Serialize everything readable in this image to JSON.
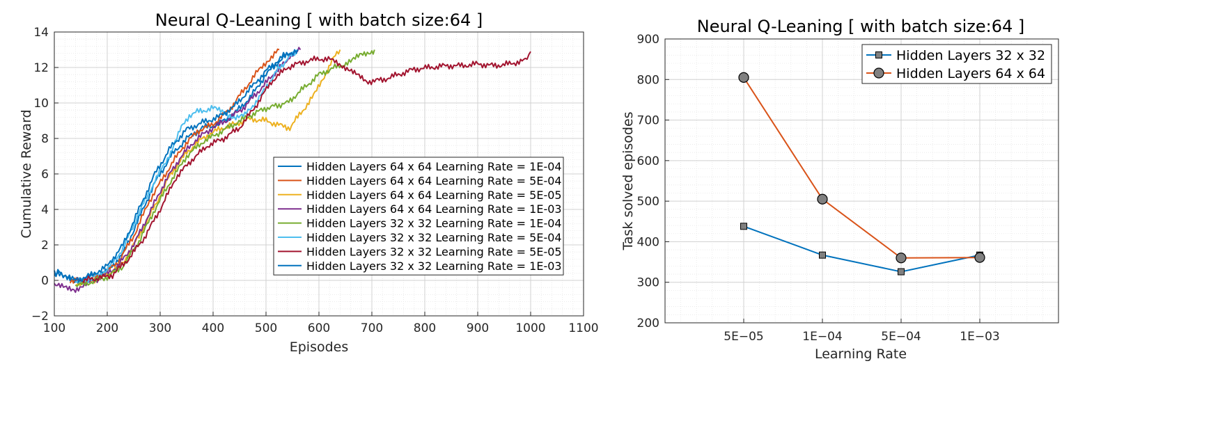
{
  "chart_data": [
    {
      "type": "line",
      "title": "Neural Q-Leaning [ with batch size:64 ]",
      "xlabel": "Episodes",
      "ylabel": "Cumulative Reward",
      "xlim": [
        100,
        1100
      ],
      "ylim": [
        -2,
        14
      ],
      "xticks": [
        100,
        200,
        300,
        400,
        500,
        600,
        700,
        800,
        900,
        1000,
        1100
      ],
      "yticks": [
        -2,
        0,
        2,
        4,
        6,
        8,
        10,
        12,
        14
      ],
      "grid": true,
      "legend_position": "right",
      "series": [
        {
          "name": "Hidden Layers 64 x 64 Learning Rate = 1E-04",
          "color": "#0072BD",
          "points": [
            [
              100,
              0.5
            ],
            [
              110,
              0.3
            ],
            [
              130,
              0.1
            ],
            [
              150,
              0.0
            ],
            [
              170,
              0.2
            ],
            [
              200,
              0.5
            ],
            [
              230,
              1.5
            ],
            [
              260,
              3.5
            ],
            [
              290,
              5.5
            ],
            [
              320,
              7.0
            ],
            [
              350,
              8.0
            ],
            [
              380,
              8.6
            ],
            [
              410,
              8.8
            ],
            [
              440,
              9.4
            ],
            [
              470,
              10.3
            ],
            [
              500,
              11.6
            ],
            [
              530,
              12.5
            ],
            [
              560,
              13.0
            ]
          ]
        },
        {
          "name": "Hidden Layers 64 x 64 Learning Rate = 5E-04",
          "color": "#D95319",
          "points": [
            [
              130,
              0.0
            ],
            [
              160,
              0.0
            ],
            [
              190,
              0.3
            ],
            [
              220,
              1.0
            ],
            [
              250,
              2.5
            ],
            [
              280,
              4.5
            ],
            [
              310,
              6.0
            ],
            [
              340,
              7.4
            ],
            [
              370,
              8.4
            ],
            [
              400,
              8.8
            ],
            [
              430,
              9.6
            ],
            [
              460,
              10.8
            ],
            [
              490,
              12.0
            ],
            [
              510,
              12.6
            ],
            [
              525,
              13.0
            ]
          ]
        },
        {
          "name": "Hidden Layers 64 x 64 Learning Rate = 5E-05",
          "color": "#EDB120",
          "points": [
            [
              140,
              -0.2
            ],
            [
              170,
              0.0
            ],
            [
              200,
              0.3
            ],
            [
              230,
              1.0
            ],
            [
              260,
              2.5
            ],
            [
              290,
              4.2
            ],
            [
              320,
              6.0
            ],
            [
              350,
              7.2
            ],
            [
              380,
              8.0
            ],
            [
              410,
              8.5
            ],
            [
              440,
              8.8
            ],
            [
              470,
              9.1
            ],
            [
              500,
              9.0
            ],
            [
              530,
              8.7
            ],
            [
              545,
              8.6
            ],
            [
              560,
              9.2
            ],
            [
              590,
              10.4
            ],
            [
              610,
              11.5
            ],
            [
              625,
              12.4
            ],
            [
              640,
              13.0
            ]
          ]
        },
        {
          "name": "Hidden Layers 64 x 64 Learning Rate = 1E-03",
          "color": "#7E2F8E",
          "points": [
            [
              100,
              -0.3
            ],
            [
              120,
              -0.4
            ],
            [
              140,
              -0.5
            ],
            [
              160,
              -0.2
            ],
            [
              190,
              0.2
            ],
            [
              220,
              0.8
            ],
            [
              250,
              2.0
            ],
            [
              280,
              3.8
            ],
            [
              310,
              5.6
            ],
            [
              340,
              7.0
            ],
            [
              370,
              8.0
            ],
            [
              400,
              8.6
            ],
            [
              430,
              9.1
            ],
            [
              460,
              9.8
            ],
            [
              490,
              10.8
            ],
            [
              520,
              11.8
            ],
            [
              545,
              12.6
            ],
            [
              565,
              13.0
            ]
          ]
        },
        {
          "name": "Hidden Layers 32 x 32 Learning Rate = 1E-04",
          "color": "#77AC30",
          "points": [
            [
              140,
              -0.3
            ],
            [
              170,
              -0.1
            ],
            [
              200,
              0.2
            ],
            [
              230,
              0.8
            ],
            [
              260,
              2.2
            ],
            [
              290,
              4.0
            ],
            [
              320,
              5.6
            ],
            [
              350,
              7.0
            ],
            [
              380,
              7.8
            ],
            [
              410,
              8.3
            ],
            [
              440,
              8.8
            ],
            [
              470,
              9.3
            ],
            [
              500,
              9.7
            ],
            [
              540,
              10.0
            ],
            [
              570,
              10.8
            ],
            [
              600,
              11.6
            ],
            [
              630,
              12.0
            ],
            [
              660,
              12.3
            ],
            [
              680,
              12.8
            ],
            [
              700,
              12.9
            ],
            [
              705,
              13.0
            ]
          ]
        },
        {
          "name": "Hidden Layers 32 x 32 Learning Rate = 5E-04",
          "color": "#4DBEEE",
          "points": [
            [
              140,
              -0.1
            ],
            [
              170,
              0.1
            ],
            [
              200,
              0.6
            ],
            [
              230,
              1.8
            ],
            [
              260,
              3.8
            ],
            [
              290,
              5.6
            ],
            [
              320,
              7.2
            ],
            [
              340,
              8.6
            ],
            [
              355,
              9.3
            ],
            [
              370,
              9.5
            ],
            [
              385,
              9.6
            ],
            [
              400,
              9.7
            ],
            [
              420,
              9.5
            ],
            [
              440,
              9.2
            ],
            [
              460,
              9.3
            ],
            [
              490,
              10.4
            ],
            [
              520,
              11.8
            ],
            [
              545,
              12.6
            ],
            [
              560,
              13.0
            ]
          ]
        },
        {
          "name": "Hidden Layers 32 x 32 Learning Rate = 5E-05",
          "color": "#A2142F",
          "points": [
            [
              140,
              0.0
            ],
            [
              180,
              0.1
            ],
            [
              210,
              0.3
            ],
            [
              240,
              1.2
            ],
            [
              270,
              2.4
            ],
            [
              300,
              4.0
            ],
            [
              330,
              5.8
            ],
            [
              360,
              6.8
            ],
            [
              390,
              7.6
            ],
            [
              420,
              8.0
            ],
            [
              450,
              8.6
            ],
            [
              480,
              9.8
            ],
            [
              510,
              11.2
            ],
            [
              540,
              12.0
            ],
            [
              570,
              12.3
            ],
            [
              600,
              12.5
            ],
            [
              630,
              12.4
            ],
            [
              650,
              12.0
            ],
            [
              670,
              11.6
            ],
            [
              690,
              11.2
            ],
            [
              720,
              11.3
            ],
            [
              750,
              11.6
            ],
            [
              780,
              11.9
            ],
            [
              810,
              12.0
            ],
            [
              840,
              12.1
            ],
            [
              870,
              12.1
            ],
            [
              900,
              12.2
            ],
            [
              930,
              12.1
            ],
            [
              960,
              12.2
            ],
            [
              990,
              12.4
            ],
            [
              1000,
              12.9
            ]
          ]
        },
        {
          "name": "Hidden Layers 32 x 32 Learning Rate = 1E-03",
          "color": "#0072BD",
          "points": [
            [
              100,
              0.3
            ],
            [
              110,
              0.5
            ],
            [
              120,
              0.2
            ],
            [
              140,
              0.0
            ],
            [
              170,
              0.3
            ],
            [
              200,
              0.8
            ],
            [
              230,
              2.0
            ],
            [
              260,
              4.0
            ],
            [
              290,
              6.0
            ],
            [
              320,
              7.5
            ],
            [
              350,
              8.5
            ],
            [
              380,
              8.9
            ],
            [
              410,
              9.2
            ],
            [
              440,
              9.8
            ],
            [
              470,
              10.8
            ],
            [
              500,
              11.8
            ],
            [
              530,
              12.6
            ],
            [
              560,
              13.0
            ]
          ]
        }
      ]
    },
    {
      "type": "line",
      "title": "Neural Q-Leaning [ with batch size:64 ]",
      "xlabel": "Learning Rate",
      "ylabel": "Task solved episodes",
      "categories": [
        "5E-05",
        "1E-04",
        "5E-04",
        "1E-03"
      ],
      "ylim": [
        200,
        900
      ],
      "yticks": [
        200,
        300,
        400,
        500,
        600,
        700,
        800,
        900
      ],
      "grid": true,
      "legend_position": "top-right",
      "series": [
        {
          "name": "Hidden Layers 32 x 32",
          "color": "#0072BD",
          "marker": "square",
          "values": [
            438,
            367,
            326,
            367
          ]
        },
        {
          "name": "Hidden Layers 64 x 64",
          "color": "#D95319",
          "marker": "circle",
          "values": [
            805,
            505,
            360,
            361
          ]
        }
      ]
    }
  ]
}
